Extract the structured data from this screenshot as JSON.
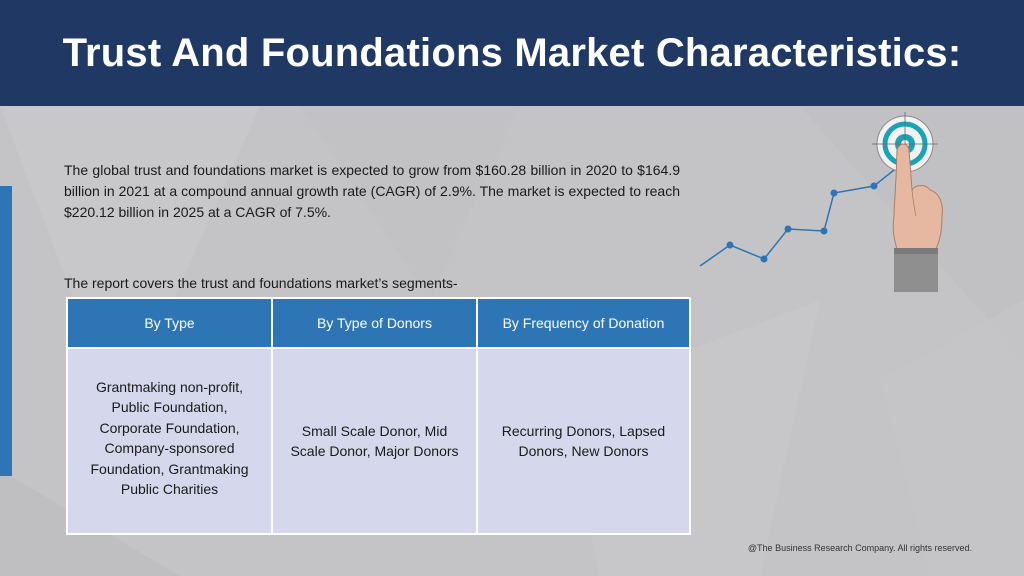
{
  "header": {
    "title": "Trust And Foundations Market Characteristics:"
  },
  "intro": {
    "text": "The global trust and foundations market is expected to grow from $160.28 billion in 2020 to $164.9 billion in 2021 at a compound annual growth rate (CAGR) of 2.9%. The market is expected to reach $220.12 billion in 2025 at a CAGR of 7.5%."
  },
  "segments": {
    "caption": "The report covers the trust and foundations market’s segments-",
    "headers": [
      "By Type",
      "By Type of Donors",
      "By Frequency of Donation"
    ],
    "cells": [
      "Grantmaking non-profit, Public Foundation, Corporate Foundation, Company-sponsored Foundation, Grantmaking Public Charities",
      "Small Scale Donor, Mid Scale Donor, Major Donors",
      "Recurring Donors, Lapsed Donors, New Donors"
    ]
  },
  "illustration": {
    "icon": "target-growth-icon",
    "accent_color": "#2e75b6",
    "target_color": "#1aa3b5"
  },
  "footer": {
    "copyright": "@The Business Research Company. All rights reserved."
  }
}
